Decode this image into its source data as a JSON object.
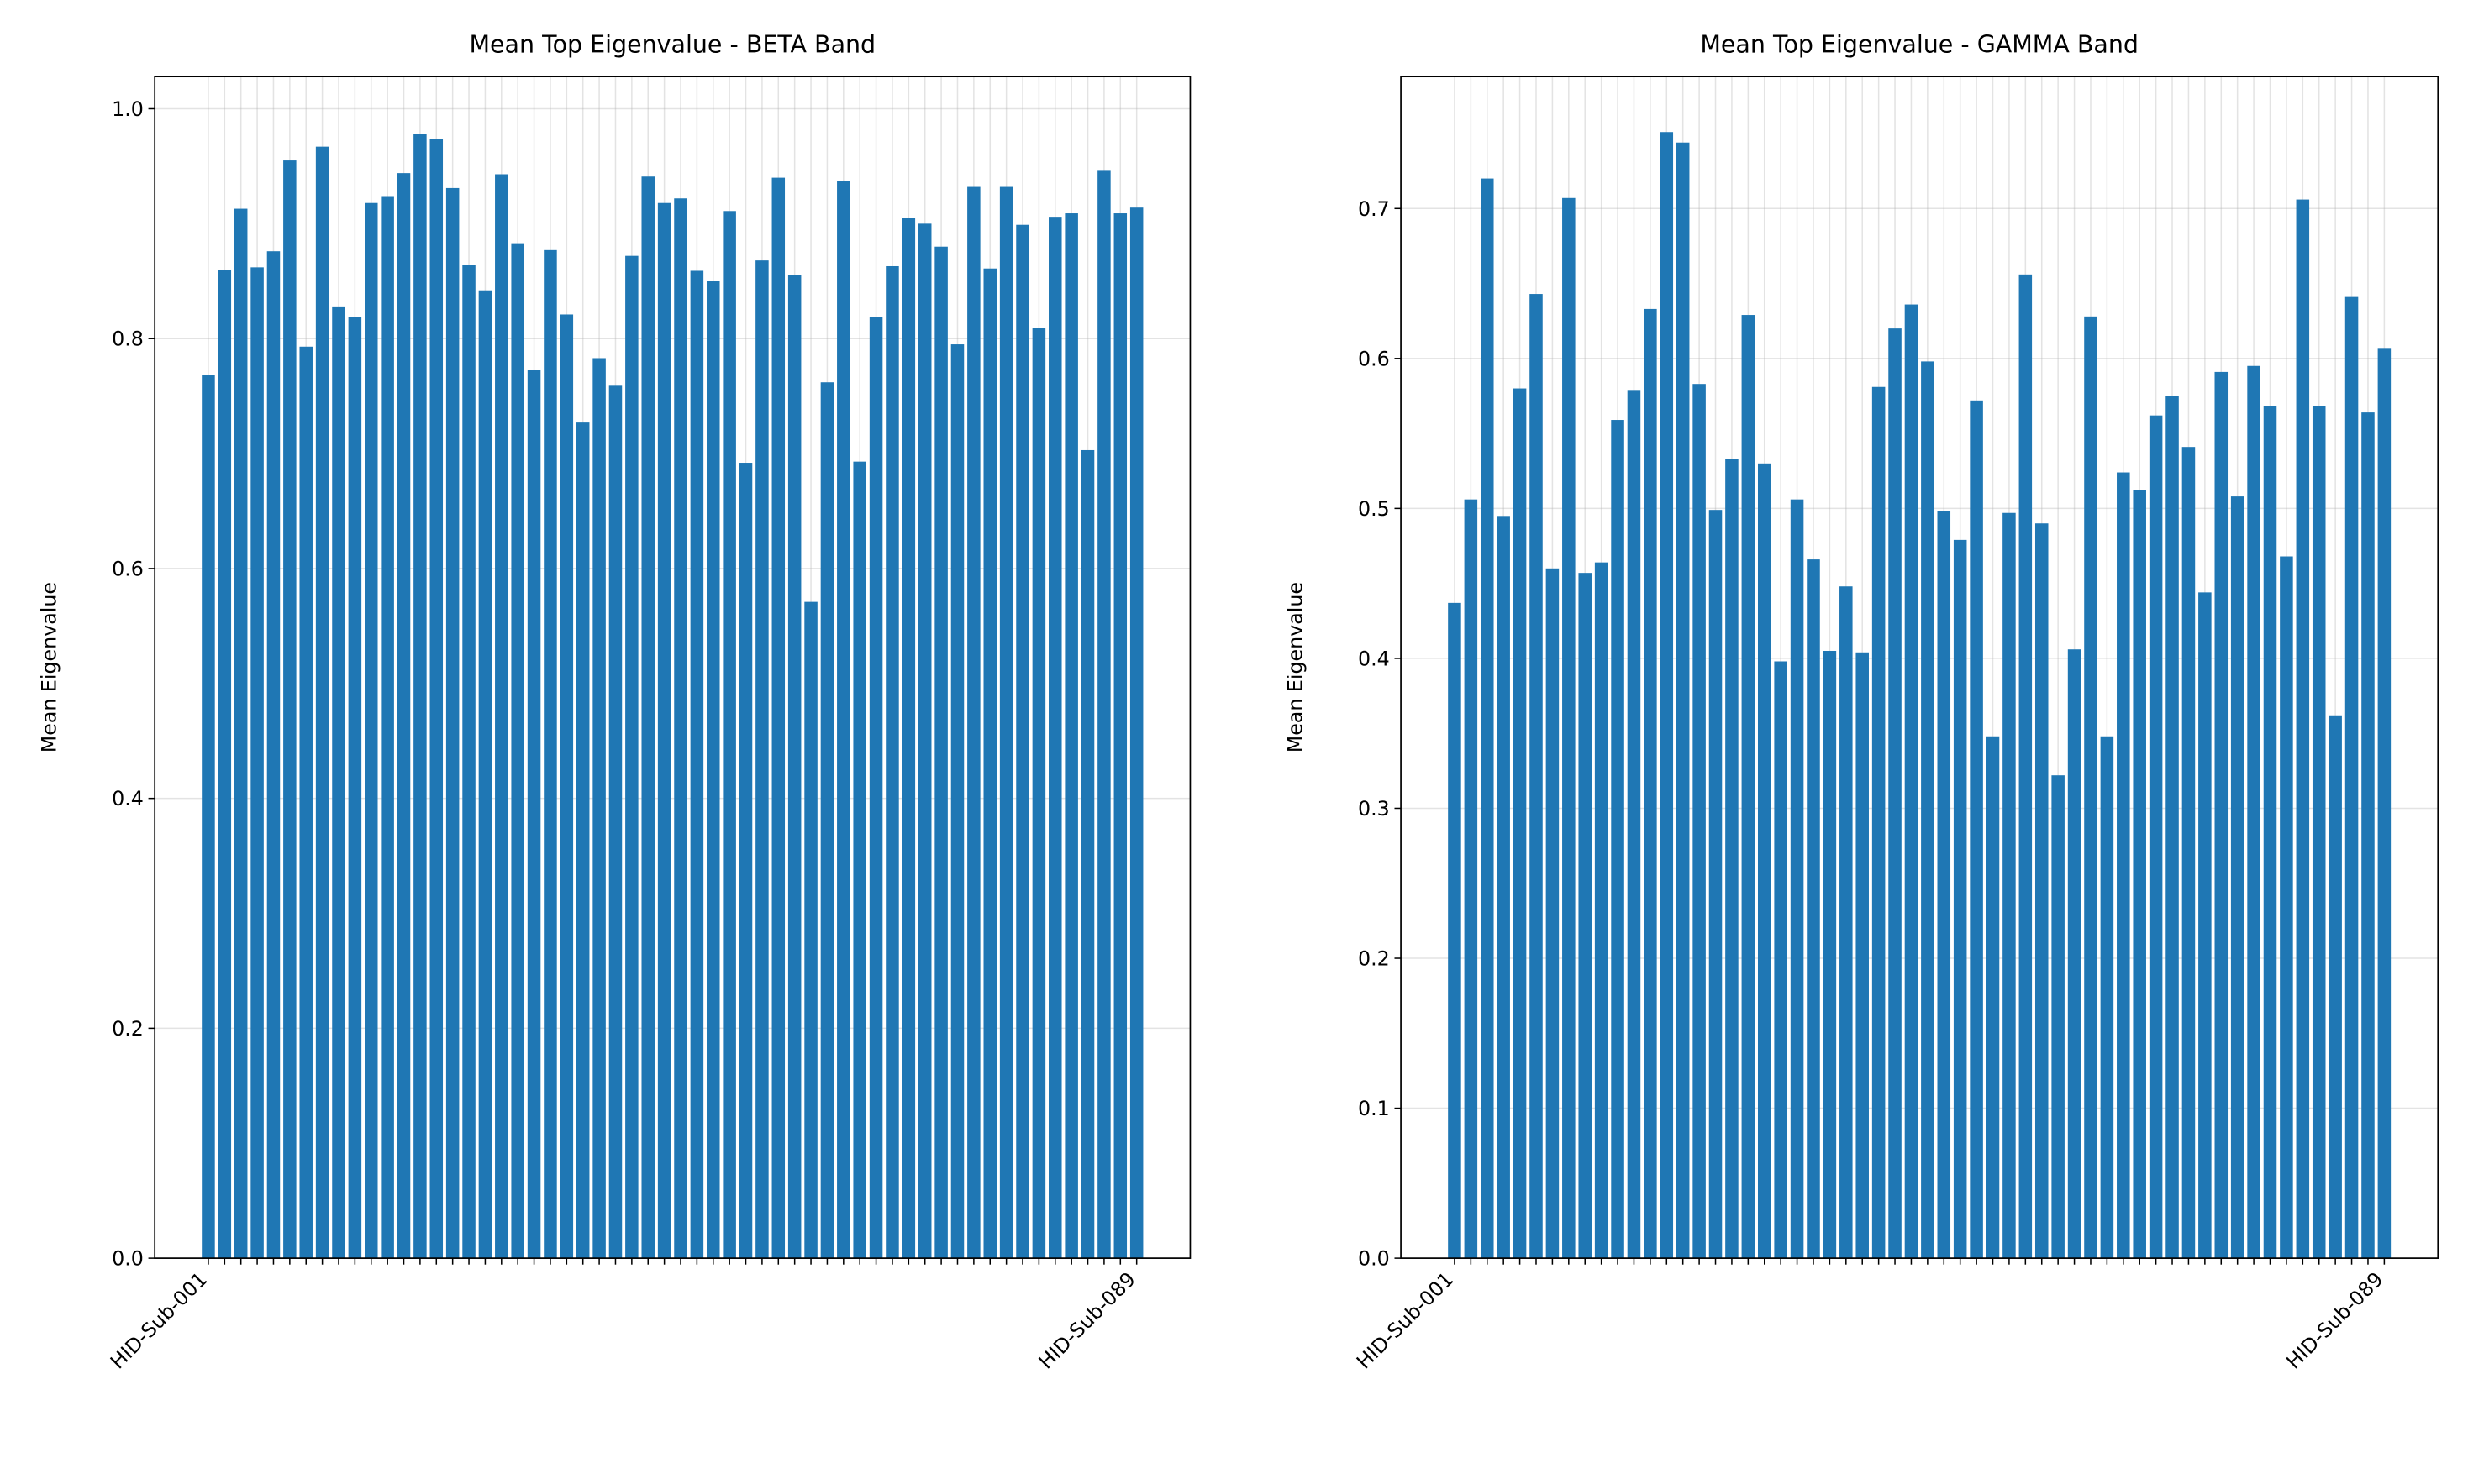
{
  "chart_data": [
    {
      "type": "bar",
      "title": "Mean Top Eigenvalue - BETA Band",
      "ylabel": "Mean Eigenvalue",
      "color": "#1f77b4",
      "grid": true,
      "categories": [
        "HID-Sub-001",
        null,
        null,
        null,
        null,
        null,
        null,
        null,
        null,
        null,
        null,
        null,
        null,
        null,
        null,
        null,
        null,
        null,
        null,
        null,
        null,
        null,
        null,
        null,
        null,
        null,
        null,
        null,
        null,
        null,
        null,
        null,
        null,
        null,
        null,
        null,
        null,
        null,
        null,
        null,
        null,
        null,
        null,
        null,
        null,
        null,
        null,
        null,
        null,
        null,
        null,
        null,
        null,
        null,
        null,
        null,
        null,
        "HID-Sub-089"
      ],
      "values": [
        0.768,
        0.86,
        0.913,
        0.862,
        0.876,
        0.955,
        0.793,
        0.967,
        0.828,
        0.819,
        0.918,
        0.924,
        0.944,
        0.978,
        0.974,
        0.931,
        0.864,
        0.842,
        0.943,
        0.883,
        0.773,
        0.877,
        0.821,
        0.727,
        0.783,
        0.759,
        0.872,
        0.941,
        0.918,
        0.922,
        0.859,
        0.85,
        0.911,
        0.692,
        0.868,
        0.94,
        0.855,
        0.571,
        0.762,
        0.937,
        0.693,
        0.819,
        0.863,
        0.905,
        0.9,
        0.88,
        0.795,
        0.932,
        0.861,
        0.932,
        0.899,
        0.809,
        0.906,
        0.909,
        0.703,
        0.946,
        0.909,
        0.914
      ],
      "ylim": [
        0,
        1.028
      ],
      "yticks": [
        {
          "value": 0,
          "label": "0.0"
        },
        0.2,
        0.4,
        0.6,
        0.8,
        {
          "value": 1,
          "label": "1.0"
        }
      ]
    },
    {
      "type": "bar",
      "title": "Mean Top Eigenvalue - GAMMA Band",
      "ylabel": "Mean Eigenvalue",
      "color": "#1f77b4",
      "grid": true,
      "categories": [
        "HID-Sub-001",
        null,
        null,
        null,
        null,
        null,
        null,
        null,
        null,
        null,
        null,
        null,
        null,
        null,
        null,
        null,
        null,
        null,
        null,
        null,
        null,
        null,
        null,
        null,
        null,
        null,
        null,
        null,
        null,
        null,
        null,
        null,
        null,
        null,
        null,
        null,
        null,
        null,
        null,
        null,
        null,
        null,
        null,
        null,
        null,
        null,
        null,
        null,
        null,
        null,
        null,
        null,
        null,
        null,
        null,
        null,
        null,
        "HID-Sub-089"
      ],
      "values": [
        0.437,
        0.506,
        0.72,
        0.495,
        0.58,
        0.643,
        0.46,
        0.707,
        0.457,
        0.464,
        0.559,
        0.579,
        0.633,
        0.751,
        0.744,
        0.583,
        0.499,
        0.533,
        0.629,
        0.53,
        0.398,
        0.506,
        0.466,
        0.405,
        0.448,
        0.404,
        0.581,
        0.62,
        0.636,
        0.598,
        0.498,
        0.479,
        0.572,
        0.348,
        0.497,
        0.656,
        0.49,
        0.322,
        0.406,
        0.628,
        0.348,
        0.524,
        0.512,
        0.562,
        0.575,
        0.541,
        0.444,
        0.591,
        0.508,
        0.595,
        0.568,
        0.468,
        0.706,
        0.568,
        0.362,
        0.641,
        0.564,
        0.607
      ],
      "ylim": [
        0,
        0.788
      ],
      "yticks": [
        {
          "value": 0,
          "label": "0.0"
        },
        0.1,
        0.2,
        0.3,
        0.4,
        0.5,
        0.6,
        0.7
      ]
    }
  ]
}
